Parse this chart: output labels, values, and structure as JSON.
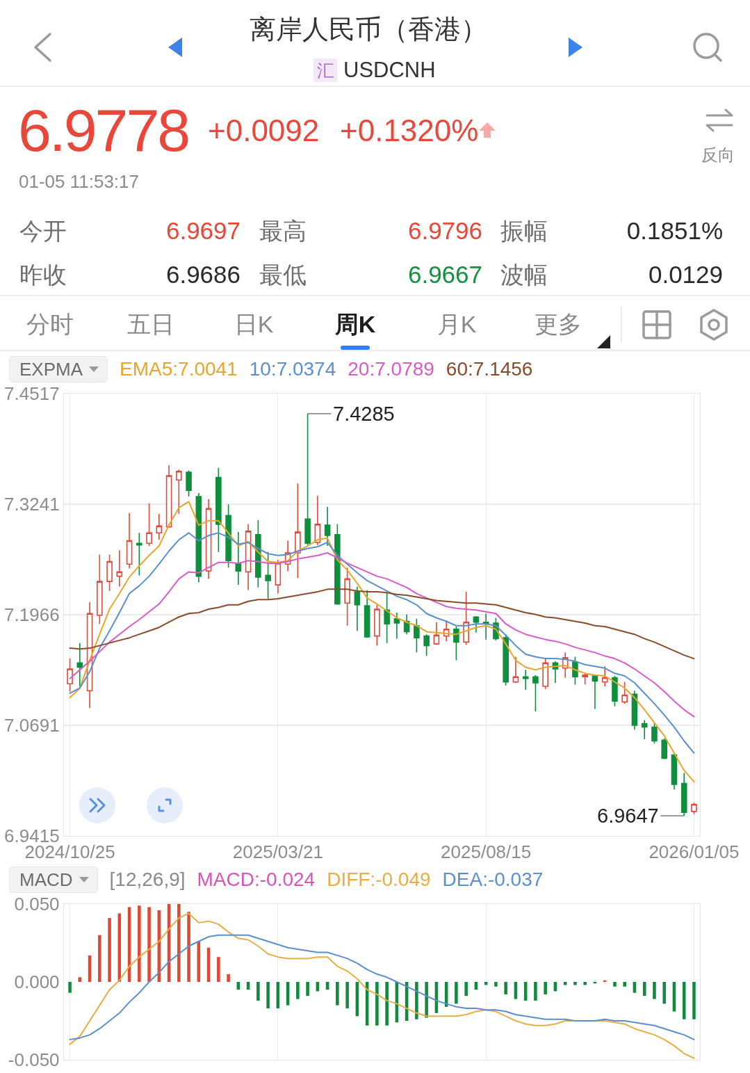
{
  "chart_data": [
    {
      "type": "other",
      "title": "离岸人民币（香港）",
      "subtitle": "USDCNH",
      "annotations": [
        "汇",
        "6.9778",
        "+0.0092",
        "+0.1320%",
        "01-05 11:53:17",
        "反向",
        "今开",
        "6.9697",
        "最高",
        "6.9796",
        "振幅",
        "0.1851%",
        "昨收",
        "6.9686",
        "最低",
        "6.9667",
        "波幅",
        "0.0129",
        "分时",
        "五日",
        "日K",
        "周K",
        "月K",
        "更多"
      ]
    },
    {
      "type": "candlestick",
      "legend_title": "EXPMA",
      "legend": "top left",
      "grid": true,
      "categories": [
        "2024/10/25",
        null,
        null,
        null,
        null,
        null,
        null,
        null,
        null,
        null,
        null,
        null,
        null,
        null,
        null,
        null,
        null,
        null,
        null,
        null,
        null,
        "2025/03/21",
        null,
        null,
        null,
        null,
        null,
        null,
        null,
        null,
        null,
        null,
        null,
        null,
        null,
        null,
        null,
        null,
        null,
        null,
        null,
        null,
        "2025/08/15",
        null,
        null,
        null,
        null,
        null,
        null,
        null,
        null,
        null,
        null,
        null,
        null,
        null,
        null,
        null,
        null,
        null,
        null,
        null,
        null,
        "2026/01/05"
      ],
      "ohlc": [
        [
          7.117,
          7.146,
          7.108,
          7.134
        ],
        [
          7.141,
          7.164,
          7.114,
          7.136
        ],
        [
          7.109,
          7.211,
          7.089,
          7.198
        ],
        [
          7.196,
          7.266,
          7.186,
          7.235
        ],
        [
          7.235,
          7.266,
          7.224,
          7.258
        ],
        [
          7.241,
          7.271,
          7.229,
          7.246
        ],
        [
          7.255,
          7.314,
          7.25,
          7.282
        ],
        [
          7.279,
          7.291,
          7.242,
          7.277
        ],
        [
          7.279,
          7.325,
          7.276,
          7.291
        ],
        [
          7.291,
          7.313,
          7.283,
          7.299
        ],
        [
          7.298,
          7.369,
          7.297,
          7.357
        ],
        [
          7.352,
          7.364,
          7.313,
          7.362
        ],
        [
          7.361,
          7.363,
          7.333,
          7.34
        ],
        [
          7.333,
          7.337,
          7.234,
          7.241
        ],
        [
          7.247,
          7.33,
          7.238,
          7.319
        ],
        [
          7.355,
          7.366,
          7.269,
          7.301
        ],
        [
          7.311,
          7.324,
          7.251,
          7.259
        ],
        [
          7.256,
          7.292,
          7.231,
          7.247
        ],
        [
          7.246,
          7.301,
          7.225,
          7.293
        ],
        [
          7.289,
          7.306,
          7.228,
          7.24
        ],
        [
          7.242,
          7.269,
          7.215,
          7.236
        ],
        [
          7.231,
          7.26,
          7.221,
          7.256
        ],
        [
          7.255,
          7.282,
          7.247,
          7.268
        ],
        [
          7.268,
          7.348,
          7.239,
          7.292
        ],
        [
          7.307,
          7.4285,
          7.277,
          7.279
        ],
        [
          7.28,
          7.334,
          7.277,
          7.301
        ],
        [
          7.3,
          7.321,
          7.276,
          7.288
        ],
        [
          7.289,
          7.301,
          7.208,
          7.209
        ],
        [
          7.21,
          7.251,
          7.184,
          7.238
        ],
        [
          7.223,
          7.229,
          7.178,
          7.208
        ],
        [
          7.207,
          7.225,
          7.17,
          7.171
        ],
        [
          7.172,
          7.208,
          7.161,
          7.203
        ],
        [
          7.202,
          7.222,
          7.164,
          7.186
        ],
        [
          7.192,
          7.199,
          7.169,
          7.187
        ],
        [
          7.189,
          7.197,
          7.174,
          7.177
        ],
        [
          7.184,
          7.192,
          7.153,
          7.17
        ],
        [
          7.172,
          7.174,
          7.149,
          7.161
        ],
        [
          7.163,
          7.188,
          7.162,
          7.173
        ],
        [
          7.172,
          7.19,
          7.166,
          7.18
        ],
        [
          7.18,
          7.183,
          7.144,
          7.165
        ],
        [
          7.165,
          7.223,
          7.162,
          7.188
        ],
        [
          7.194,
          7.195,
          7.176,
          7.188
        ],
        [
          7.188,
          7.198,
          7.168,
          7.186
        ],
        [
          7.187,
          7.193,
          7.167,
          7.169
        ],
        [
          7.17,
          7.174,
          7.115,
          7.119
        ],
        [
          7.119,
          7.148,
          7.118,
          7.125
        ],
        [
          7.125,
          7.133,
          7.11,
          7.123
        ],
        [
          7.125,
          7.127,
          7.085,
          7.118
        ],
        [
          7.114,
          7.147,
          7.111,
          7.141
        ],
        [
          7.141,
          7.143,
          7.118,
          7.134
        ],
        [
          7.135,
          7.153,
          7.124,
          7.147
        ],
        [
          7.142,
          7.148,
          7.116,
          7.125
        ],
        [
          7.125,
          7.129,
          7.116,
          7.127
        ],
        [
          7.126,
          7.127,
          7.088,
          7.12
        ],
        [
          7.119,
          7.137,
          7.114,
          7.124
        ],
        [
          7.124,
          7.126,
          7.091,
          7.097
        ],
        [
          7.096,
          7.119,
          7.094,
          7.104
        ],
        [
          7.105,
          7.109,
          7.064,
          7.069
        ],
        [
          7.071,
          7.075,
          7.053,
          7.067
        ],
        [
          7.067,
          7.071,
          7.048,
          7.051
        ],
        [
          7.052,
          7.054,
          7.03,
          7.031
        ],
        [
          7.035,
          7.036,
          6.995,
          7.001
        ],
        [
          7.002,
          7.014,
          6.9647,
          6.9686
        ],
        [
          6.9697,
          6.9796,
          6.9667,
          6.9778
        ]
      ],
      "colors": [
        "#e04a3a",
        "#0f8f3e",
        "#e04a3a",
        "#e04a3a",
        "#e04a3a",
        "#e04a3a",
        "#e04a3a",
        "#0f8f3e",
        "#e04a3a",
        "#e04a3a",
        "#e04a3a",
        "#e04a3a",
        "#0f8f3e",
        "#0f8f3e",
        "#e04a3a",
        "#0f8f3e",
        "#0f8f3e",
        "#0f8f3e",
        "#e04a3a",
        "#0f8f3e",
        "#0f8f3e",
        "#e04a3a",
        "#e04a3a",
        "#e04a3a",
        "#0f8f3e",
        "#e04a3a",
        "#0f8f3e",
        "#0f8f3e",
        "#e04a3a",
        "#0f8f3e",
        "#0f8f3e",
        "#e04a3a",
        "#0f8f3e",
        "#0f8f3e",
        "#0f8f3e",
        "#0f8f3e",
        "#0f8f3e",
        "#e04a3a",
        "#e04a3a",
        "#0f8f3e",
        "#e04a3a",
        "#0f8f3e",
        "#0f8f3e",
        "#0f8f3e",
        "#0f8f3e",
        "#e04a3a",
        "#0f8f3e",
        "#0f8f3e",
        "#e04a3a",
        "#0f8f3e",
        "#e04a3a",
        "#0f8f3e",
        "#e04a3a",
        "#0f8f3e",
        "#e04a3a",
        "#0f8f3e",
        "#e04a3a",
        "#0f8f3e",
        "#0f8f3e",
        "#0f8f3e",
        "#0f8f3e",
        "#0f8f3e",
        "#0f8f3e",
        "#e04a3a"
      ],
      "series": [
        {
          "name": "EMA5:7.0041",
          "type": "line",
          "color": "#e8a62c",
          "values": [
            7.101,
            7.112,
            7.144,
            7.174,
            7.203,
            7.221,
            7.24,
            7.253,
            7.265,
            7.276,
            7.3,
            7.32,
            7.327,
            7.3,
            7.305,
            7.305,
            7.291,
            7.276,
            7.281,
            7.269,
            7.258,
            7.257,
            7.259,
            7.27,
            7.276,
            7.283,
            7.285,
            7.26,
            7.248,
            7.233,
            7.216,
            7.209,
            7.201,
            7.193,
            7.188,
            7.184,
            7.177,
            7.176,
            7.175,
            7.174,
            7.178,
            7.182,
            7.184,
            7.18,
            7.163,
            7.144,
            7.136,
            7.133,
            7.136,
            7.137,
            7.138,
            7.133,
            7.129,
            7.127,
            7.126,
            7.119,
            7.112,
            7.101,
            7.087,
            7.072,
            7.057,
            7.037,
            7.017,
            7.004
          ]
        },
        {
          "name": "10:7.0374",
          "type": "line",
          "color": "#5a8fd0",
          "values": [
            7.106,
            7.112,
            7.131,
            7.158,
            7.178,
            7.199,
            7.221,
            7.23,
            7.241,
            7.255,
            7.27,
            7.283,
            7.291,
            7.282,
            7.288,
            7.291,
            7.286,
            7.278,
            7.28,
            7.273,
            7.267,
            7.265,
            7.266,
            7.27,
            7.273,
            7.275,
            7.28,
            7.265,
            7.255,
            7.245,
            7.236,
            7.23,
            7.224,
            7.218,
            7.214,
            7.208,
            7.198,
            7.193,
            7.189,
            7.184,
            7.184,
            7.186,
            7.186,
            7.184,
            7.173,
            7.161,
            7.151,
            7.148,
            7.146,
            7.146,
            7.145,
            7.143,
            7.139,
            7.137,
            7.135,
            7.129,
            7.126,
            7.118,
            7.106,
            7.094,
            7.081,
            7.067,
            7.051,
            7.037
          ]
        },
        {
          "name": "20:7.0789",
          "type": "line",
          "color": "#dc5ac6",
          "values": [
            7.123,
            7.133,
            7.143,
            7.154,
            7.165,
            7.174,
            7.183,
            7.191,
            7.2,
            7.209,
            7.223,
            7.238,
            7.246,
            7.245,
            7.251,
            7.257,
            7.257,
            7.256,
            7.259,
            7.258,
            7.256,
            7.256,
            7.258,
            7.261,
            7.263,
            7.265,
            7.268,
            7.262,
            7.256,
            7.251,
            7.246,
            7.241,
            7.238,
            7.233,
            7.228,
            7.221,
            7.216,
            7.211,
            7.206,
            7.204,
            7.203,
            7.202,
            7.2,
            7.198,
            7.186,
            7.179,
            7.174,
            7.171,
            7.168,
            7.166,
            7.163,
            7.159,
            7.156,
            7.153,
            7.149,
            7.146,
            7.141,
            7.134,
            7.126,
            7.118,
            7.108,
            7.097,
            7.087,
            7.079
          ]
        },
        {
          "name": "60:7.1456",
          "type": "line",
          "color": "#8b4a2b",
          "values": [
            7.158,
            7.157,
            7.158,
            7.161,
            7.164,
            7.167,
            7.17,
            7.174,
            7.178,
            7.182,
            7.188,
            7.194,
            7.198,
            7.199,
            7.203,
            7.205,
            7.208,
            7.208,
            7.212,
            7.214,
            7.214,
            7.215,
            7.217,
            7.219,
            7.221,
            7.223,
            7.226,
            7.226,
            7.226,
            7.224,
            7.223,
            7.223,
            7.222,
            7.22,
            7.219,
            7.217,
            7.215,
            7.213,
            7.212,
            7.211,
            7.21,
            7.21,
            7.209,
            7.208,
            7.205,
            7.202,
            7.199,
            7.197,
            7.194,
            7.193,
            7.191,
            7.189,
            7.187,
            7.184,
            7.183,
            7.18,
            7.177,
            7.174,
            7.169,
            7.165,
            7.16,
            7.155,
            7.15,
            7.146
          ]
        }
      ],
      "annotations": [
        "7.4285",
        "6.9647"
      ],
      "ylim": [
        6.9415,
        7.4517
      ],
      "yticks": [
        6.9415,
        7.0691,
        7.1966,
        7.3241,
        7.4517
      ]
    },
    {
      "type": "bar",
      "legend_title": "MACD",
      "legend": "top",
      "grid": "x",
      "tick_labels": "y",
      "categories": [
        "2024/10/25",
        null,
        null,
        null,
        null,
        null,
        null,
        null,
        null,
        null,
        null,
        null,
        null,
        null,
        null,
        null,
        null,
        null,
        null,
        null,
        null,
        "2025/03/21",
        null,
        null,
        null,
        null,
        null,
        null,
        null,
        null,
        null,
        null,
        null,
        null,
        null,
        null,
        null,
        null,
        null,
        null,
        null,
        null,
        "2025/08/15",
        null,
        null,
        null,
        null,
        null,
        null,
        null,
        null,
        null,
        null,
        null,
        null,
        null,
        null,
        null,
        null,
        null,
        null,
        null,
        null,
        "2026/01/05"
      ],
      "annotations": [
        "[12,26,9]",
        "MACD:-0.024"
      ],
      "series": [
        {
          "colors": [
            "#13893f",
            "#dc4a36",
            "#dc4a36",
            "#dc4a36",
            "#dc4a36",
            "#dc4a36",
            "#dc4a36",
            "#dc4a36",
            "#dc4a36",
            "#dc4a36",
            "#dc4a36",
            "#dc4a36",
            "#dc4a36",
            "#dc4a36",
            "#dc4a36",
            "#dc4a36",
            "#dc4a36",
            "#13893f",
            "#13893f",
            "#13893f",
            "#13893f",
            "#13893f",
            "#13893f",
            "#13893f",
            "#13893f",
            "#13893f",
            "#13893f",
            "#13893f",
            "#13893f",
            "#13893f",
            "#13893f",
            "#13893f",
            "#13893f",
            "#13893f",
            "#13893f",
            "#13893f",
            "#13893f",
            "#13893f",
            "#13893f",
            "#13893f",
            "#13893f",
            "#13893f",
            "#13893f",
            "#13893f",
            "#13893f",
            "#13893f",
            "#13893f",
            "#13893f",
            "#13893f",
            "#13893f",
            "#13893f",
            "#13893f",
            "#13893f",
            "#13893f",
            "#dc4a36",
            "#13893f",
            "#13893f",
            "#13893f",
            "#13893f",
            "#13893f",
            "#13893f",
            "#13893f",
            "#13893f",
            "#13893f"
          ],
          "values": [
            -0.007,
            0.003,
            0.017,
            0.03,
            0.041,
            0.044,
            0.048,
            0.049,
            0.048,
            0.046,
            0.05,
            0.05,
            0.045,
            0.026,
            0.022,
            0.016,
            0.005,
            -0.005,
            -0.005,
            -0.012,
            -0.017,
            -0.017,
            -0.015,
            -0.011,
            -0.009,
            -0.006,
            -0.005,
            -0.015,
            -0.017,
            -0.022,
            -0.028,
            -0.028,
            -0.028,
            -0.026,
            -0.025,
            -0.024,
            -0.023,
            -0.02,
            -0.016,
            -0.014,
            -0.009,
            -0.005,
            -0.002,
            -0.003,
            -0.008,
            -0.011,
            -0.012,
            -0.012,
            -0.008,
            -0.006,
            -0.002,
            -0.002,
            -0.002,
            -0.001,
            0.001,
            -0.003,
            -0.003,
            -0.007,
            -0.009,
            -0.011,
            -0.014,
            -0.019,
            -0.024,
            -0.024
          ]
        },
        {
          "name": "DIFF:-0.049",
          "type": "line",
          "color": "#e8ae45",
          "values": [
            -0.04,
            -0.035,
            -0.025,
            -0.015,
            -0.005,
            0.001,
            0.01,
            0.016,
            0.021,
            0.026,
            0.034,
            0.041,
            0.044,
            0.038,
            0.039,
            0.037,
            0.032,
            0.028,
            0.027,
            0.023,
            0.018,
            0.016,
            0.015,
            0.015,
            0.015,
            0.016,
            0.016,
            0.01,
            0.007,
            0.002,
            -0.005,
            -0.008,
            -0.012,
            -0.014,
            -0.017,
            -0.02,
            -0.022,
            -0.022,
            -0.022,
            -0.022,
            -0.021,
            -0.019,
            -0.018,
            -0.019,
            -0.022,
            -0.025,
            -0.027,
            -0.028,
            -0.028,
            -0.027,
            -0.025,
            -0.025,
            -0.025,
            -0.025,
            -0.025,
            -0.026,
            -0.027,
            -0.03,
            -0.032,
            -0.034,
            -0.037,
            -0.041,
            -0.046,
            -0.049
          ]
        },
        {
          "name": "DEA:-0.037",
          "type": "line",
          "color": "#5b8ed0",
          "values": [
            -0.037,
            -0.036,
            -0.034,
            -0.03,
            -0.025,
            -0.02,
            -0.013,
            -0.007,
            0.0,
            0.006,
            0.013,
            0.018,
            0.023,
            0.026,
            0.029,
            0.03,
            0.03,
            0.03,
            0.03,
            0.028,
            0.026,
            0.024,
            0.022,
            0.021,
            0.02,
            0.019,
            0.019,
            0.017,
            0.015,
            0.012,
            0.008,
            0.005,
            0.003,
            0.0,
            -0.003,
            -0.006,
            -0.009,
            -0.012,
            -0.014,
            -0.016,
            -0.017,
            -0.017,
            -0.018,
            -0.018,
            -0.019,
            -0.021,
            -0.022,
            -0.023,
            -0.024,
            -0.024,
            -0.024,
            -0.025,
            -0.025,
            -0.025,
            -0.024,
            -0.025,
            -0.025,
            -0.026,
            -0.027,
            -0.028,
            -0.03,
            -0.032,
            -0.034,
            -0.037
          ]
        }
      ],
      "ylim": [
        -0.05,
        0.05
      ],
      "yticks": [
        {
          "value": -0.05,
          "label": "-0.050"
        },
        {
          "value": 0,
          "label": "0.000"
        },
        {
          "value": 0.05,
          "label": "0.050"
        }
      ]
    }
  ]
}
